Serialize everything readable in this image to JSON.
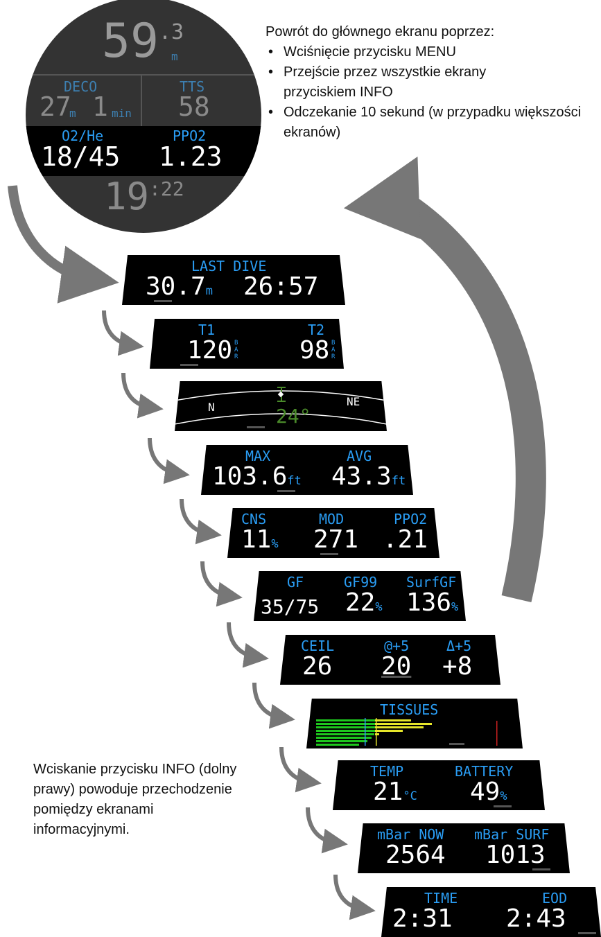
{
  "main_screen": {
    "depth": "59",
    "depth_decimal": ".3",
    "depth_unit": "m",
    "deco_label": "DECO",
    "deco_depth": "27",
    "deco_depth_unit": "m",
    "deco_time": "1",
    "deco_time_unit": "min",
    "tts_label": "TTS",
    "tts_value": "58",
    "gas_label": "O2/He",
    "gas_value": "18/45",
    "ppo2_label": "PPO2",
    "ppo2_value": "1.23",
    "time_hours": "19",
    "time_minutes": ":22"
  },
  "note_return": {
    "heading": "Powrót do głównego ekranu poprzez:",
    "bullet": "•",
    "items": [
      "Wciśnięcie przycisku MENU",
      "Przejście przez wszystkie ekrany przyciskiem INFO",
      "Odczekanie 10 sekund (w przypadku większości ekranów)"
    ]
  },
  "note_info": "Wciskanie przycisku INFO (dolny prawy) powoduje przechodzenie pomiędzy ekranami informacyjnymi.",
  "screens": {
    "last_dive": {
      "label": "LAST DIVE",
      "depth": "30.7",
      "depth_unit": "m",
      "time": "26:57"
    },
    "tanks": {
      "t1_label": "T1",
      "t1_value": "120",
      "t1_unit": "BAR",
      "t2_label": "T2",
      "t2_value": "98",
      "t2_unit": "BAR"
    },
    "compass": {
      "n_label": "N",
      "ne_label": "NE",
      "heading": "24°"
    },
    "max_avg": {
      "max_label": "MAX",
      "max_value": "103.6",
      "max_unit": "ft",
      "avg_label": "AVG",
      "avg_value": "43.3",
      "avg_unit": "ft"
    },
    "cns": {
      "cns_label": "CNS",
      "cns_value": "11",
      "cns_unit": "%",
      "mod_label": "MOD",
      "mod_value": "271",
      "ppo2_label": "PPO2",
      "ppo2_value": ".21"
    },
    "gf": {
      "gf_label": "GF",
      "gf_value": "35/75",
      "gf99_label": "GF99",
      "gf99_value": "22",
      "gf99_unit": "%",
      "surfgf_label": "SurfGF",
      "surfgf_value": "136",
      "surfgf_unit": "%"
    },
    "ceil": {
      "ceil_label": "CEIL",
      "ceil_value": "26",
      "at5_label": "@+5",
      "at5_value": "20",
      "delta5_label": "Δ+5",
      "delta5_value": "+8"
    },
    "tissues": {
      "label": "TISSUES"
    },
    "temp": {
      "temp_label": "TEMP",
      "temp_value": "21",
      "temp_unit": "°C",
      "battery_label": "BATTERY",
      "battery_value": "49",
      "battery_unit": "%"
    },
    "pressure": {
      "now_label": "mBar NOW",
      "now_value": "2564",
      "surf_label": "mBar SURF",
      "surf_value": "1013"
    },
    "time": {
      "time_label": "TIME",
      "time_value": "2:31",
      "eod_label": "EOD",
      "eod_value": "2:43"
    }
  },
  "colors": {
    "label_blue": "#2a9df4",
    "compass_green": "#4a8a2a",
    "tissue_green": "#1ec81e",
    "tissue_yellow": "#e6e62a",
    "arrow_grey": "#777777",
    "dial_grey": "#333333"
  }
}
